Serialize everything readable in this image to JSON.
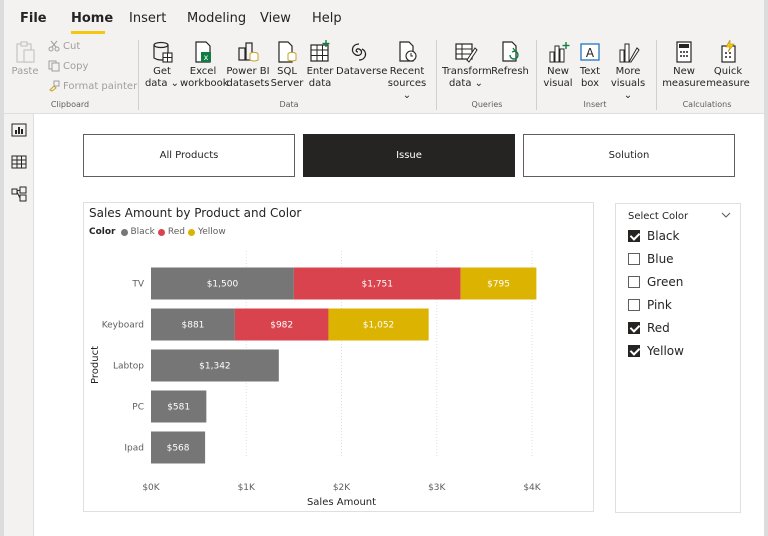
{
  "menu": [
    "File",
    "Home",
    "Insert",
    "Modeling",
    "View",
    "Help"
  ],
  "ribbon": {
    "clipboard": {
      "paste": "Paste",
      "cut": "Cut",
      "copy": "Copy",
      "format_painter": "Format painter",
      "group": "Clipboard"
    },
    "data": {
      "get_data": [
        "Get",
        "data ⌄"
      ],
      "excel": [
        "Excel",
        "workbook"
      ],
      "powerbi": [
        "Power BI",
        "datasets"
      ],
      "sql": [
        "SQL",
        "Server"
      ],
      "enter": [
        "Enter",
        "data"
      ],
      "dataverse": [
        "Dataverse",
        ""
      ],
      "recent": [
        "Recent",
        "sources ⌄"
      ],
      "group": "Data"
    },
    "queries": {
      "transform": [
        "Transform",
        "data ⌄"
      ],
      "refresh": [
        "Refresh",
        ""
      ],
      "group": "Queries"
    },
    "insert": {
      "new_visual": [
        "New",
        "visual"
      ],
      "text_box": [
        "Text",
        "box"
      ],
      "more_visuals": [
        "More",
        "visuals ⌄"
      ],
      "group": "Insert"
    },
    "calculations": {
      "new_measure": [
        "New",
        "measure"
      ],
      "quick_measure": [
        "Quick",
        "measure"
      ],
      "group": "Calculations"
    }
  },
  "rail": [
    "report-icon",
    "table-icon",
    "model-icon"
  ],
  "tabs": [
    "All Products",
    "Issue",
    "Solution"
  ],
  "chart_data": {
    "type": "bar",
    "title": "Sales Amount by Product and Color",
    "legend_title": "Color",
    "ylabel": "Product",
    "xlabel": "Sales Amount",
    "categories": [
      "TV",
      "Keyboard",
      "Labtop",
      "PC",
      "Ipad"
    ],
    "series": [
      {
        "name": "Black",
        "color": "#767676",
        "values": [
          1500,
          881,
          1342,
          581,
          568
        ],
        "labels": [
          "$1,500",
          "$881",
          "$1,342",
          "$581",
          "$568"
        ]
      },
      {
        "name": "Red",
        "color": "#d9434e",
        "values": [
          1751,
          982,
          0,
          0,
          0
        ],
        "labels": [
          "$1,751",
          "$982",
          "",
          "",
          ""
        ]
      },
      {
        "name": "Yellow",
        "color": "#dbb300",
        "values": [
          795,
          1052,
          0,
          0,
          0
        ],
        "labels": [
          "$795",
          "$1,052",
          "",
          "",
          ""
        ]
      }
    ],
    "xlim": [
      0,
      4000
    ],
    "xticks": [
      0,
      1000,
      2000,
      3000,
      4000
    ],
    "xtick_labels": [
      "$0K",
      "$1K",
      "$2K",
      "$3K",
      "$4K"
    ],
    "grid": true,
    "legend_position": "top-left"
  },
  "slicer": {
    "title": "Select Color",
    "options": [
      {
        "label": "Black",
        "checked": true
      },
      {
        "label": "Blue",
        "checked": false
      },
      {
        "label": "Green",
        "checked": false
      },
      {
        "label": "Pink",
        "checked": false
      },
      {
        "label": "Red",
        "checked": true
      },
      {
        "label": "Yellow",
        "checked": true
      }
    ]
  }
}
